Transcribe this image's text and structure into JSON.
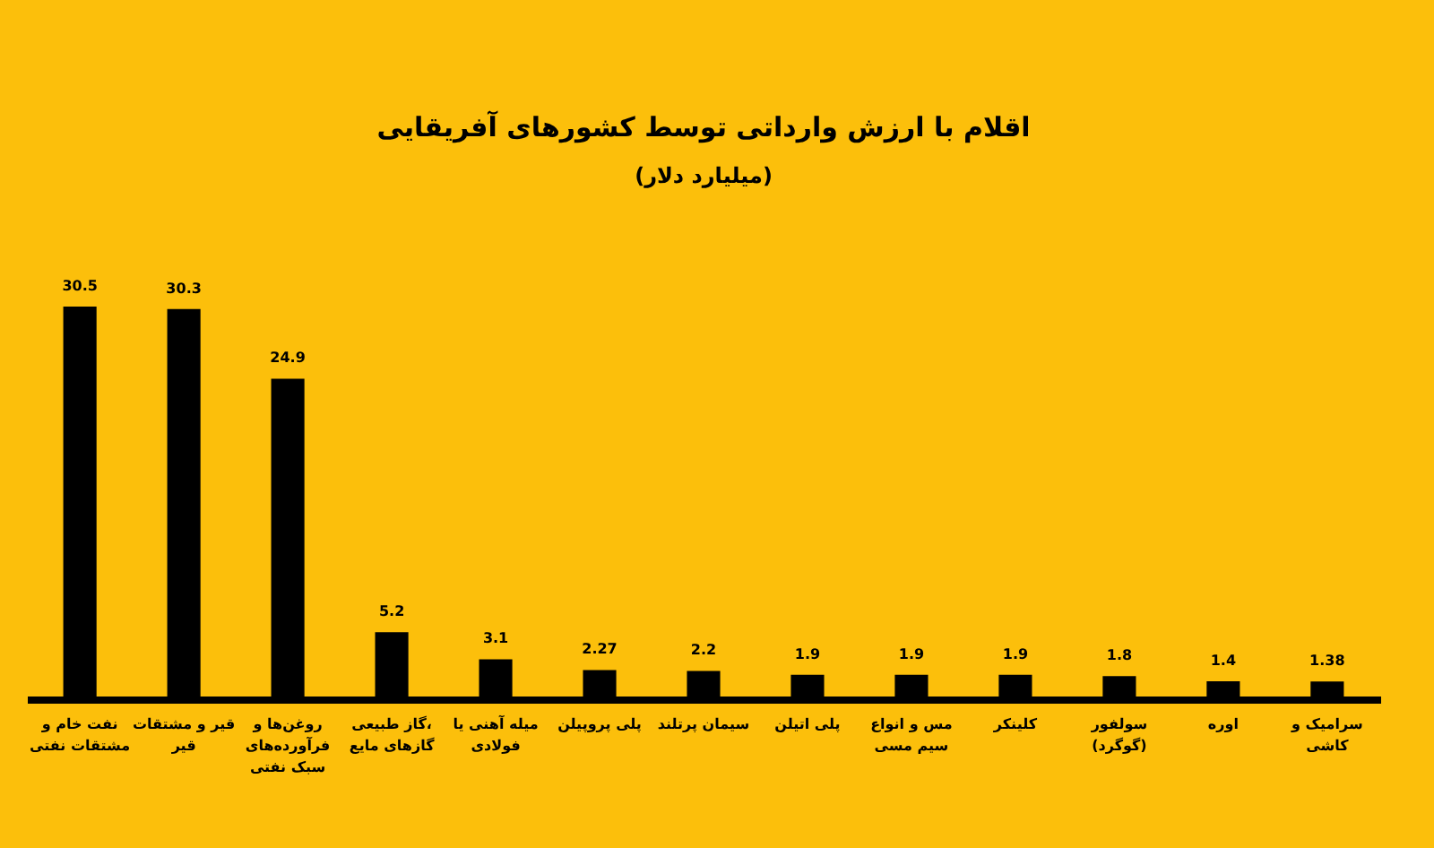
{
  "chart_data": {
    "type": "bar",
    "title": "اقلام با ارزش وارداتی توسط کشورهای آفریقایی",
    "subtitle": "(میلیارد دلار)",
    "categories": [
      "نفت خام و مشتقات نفتی",
      "قیر و مشتقات قیر",
      "روغن‌ها و فرآورده‌های سبک نفتی",
      "گاز طبیعی، گازهای مایع",
      "میله آهنی یا فولادی",
      "پلی پروپیلن",
      "سیمان پرتلند",
      "پلی اتیلن",
      "مس و انواع سیم مسی",
      "کلینکر",
      "سولفور (گوگرد)",
      "اوره",
      "سرامیک و کاشی"
    ],
    "values": [
      30.5,
      30.3,
      24.9,
      5.2,
      3.1,
      2.27,
      2.2,
      1.9,
      1.9,
      1.9,
      1.8,
      1.4,
      1.38
    ],
    "color": "#000000",
    "data_labels": true
  }
}
